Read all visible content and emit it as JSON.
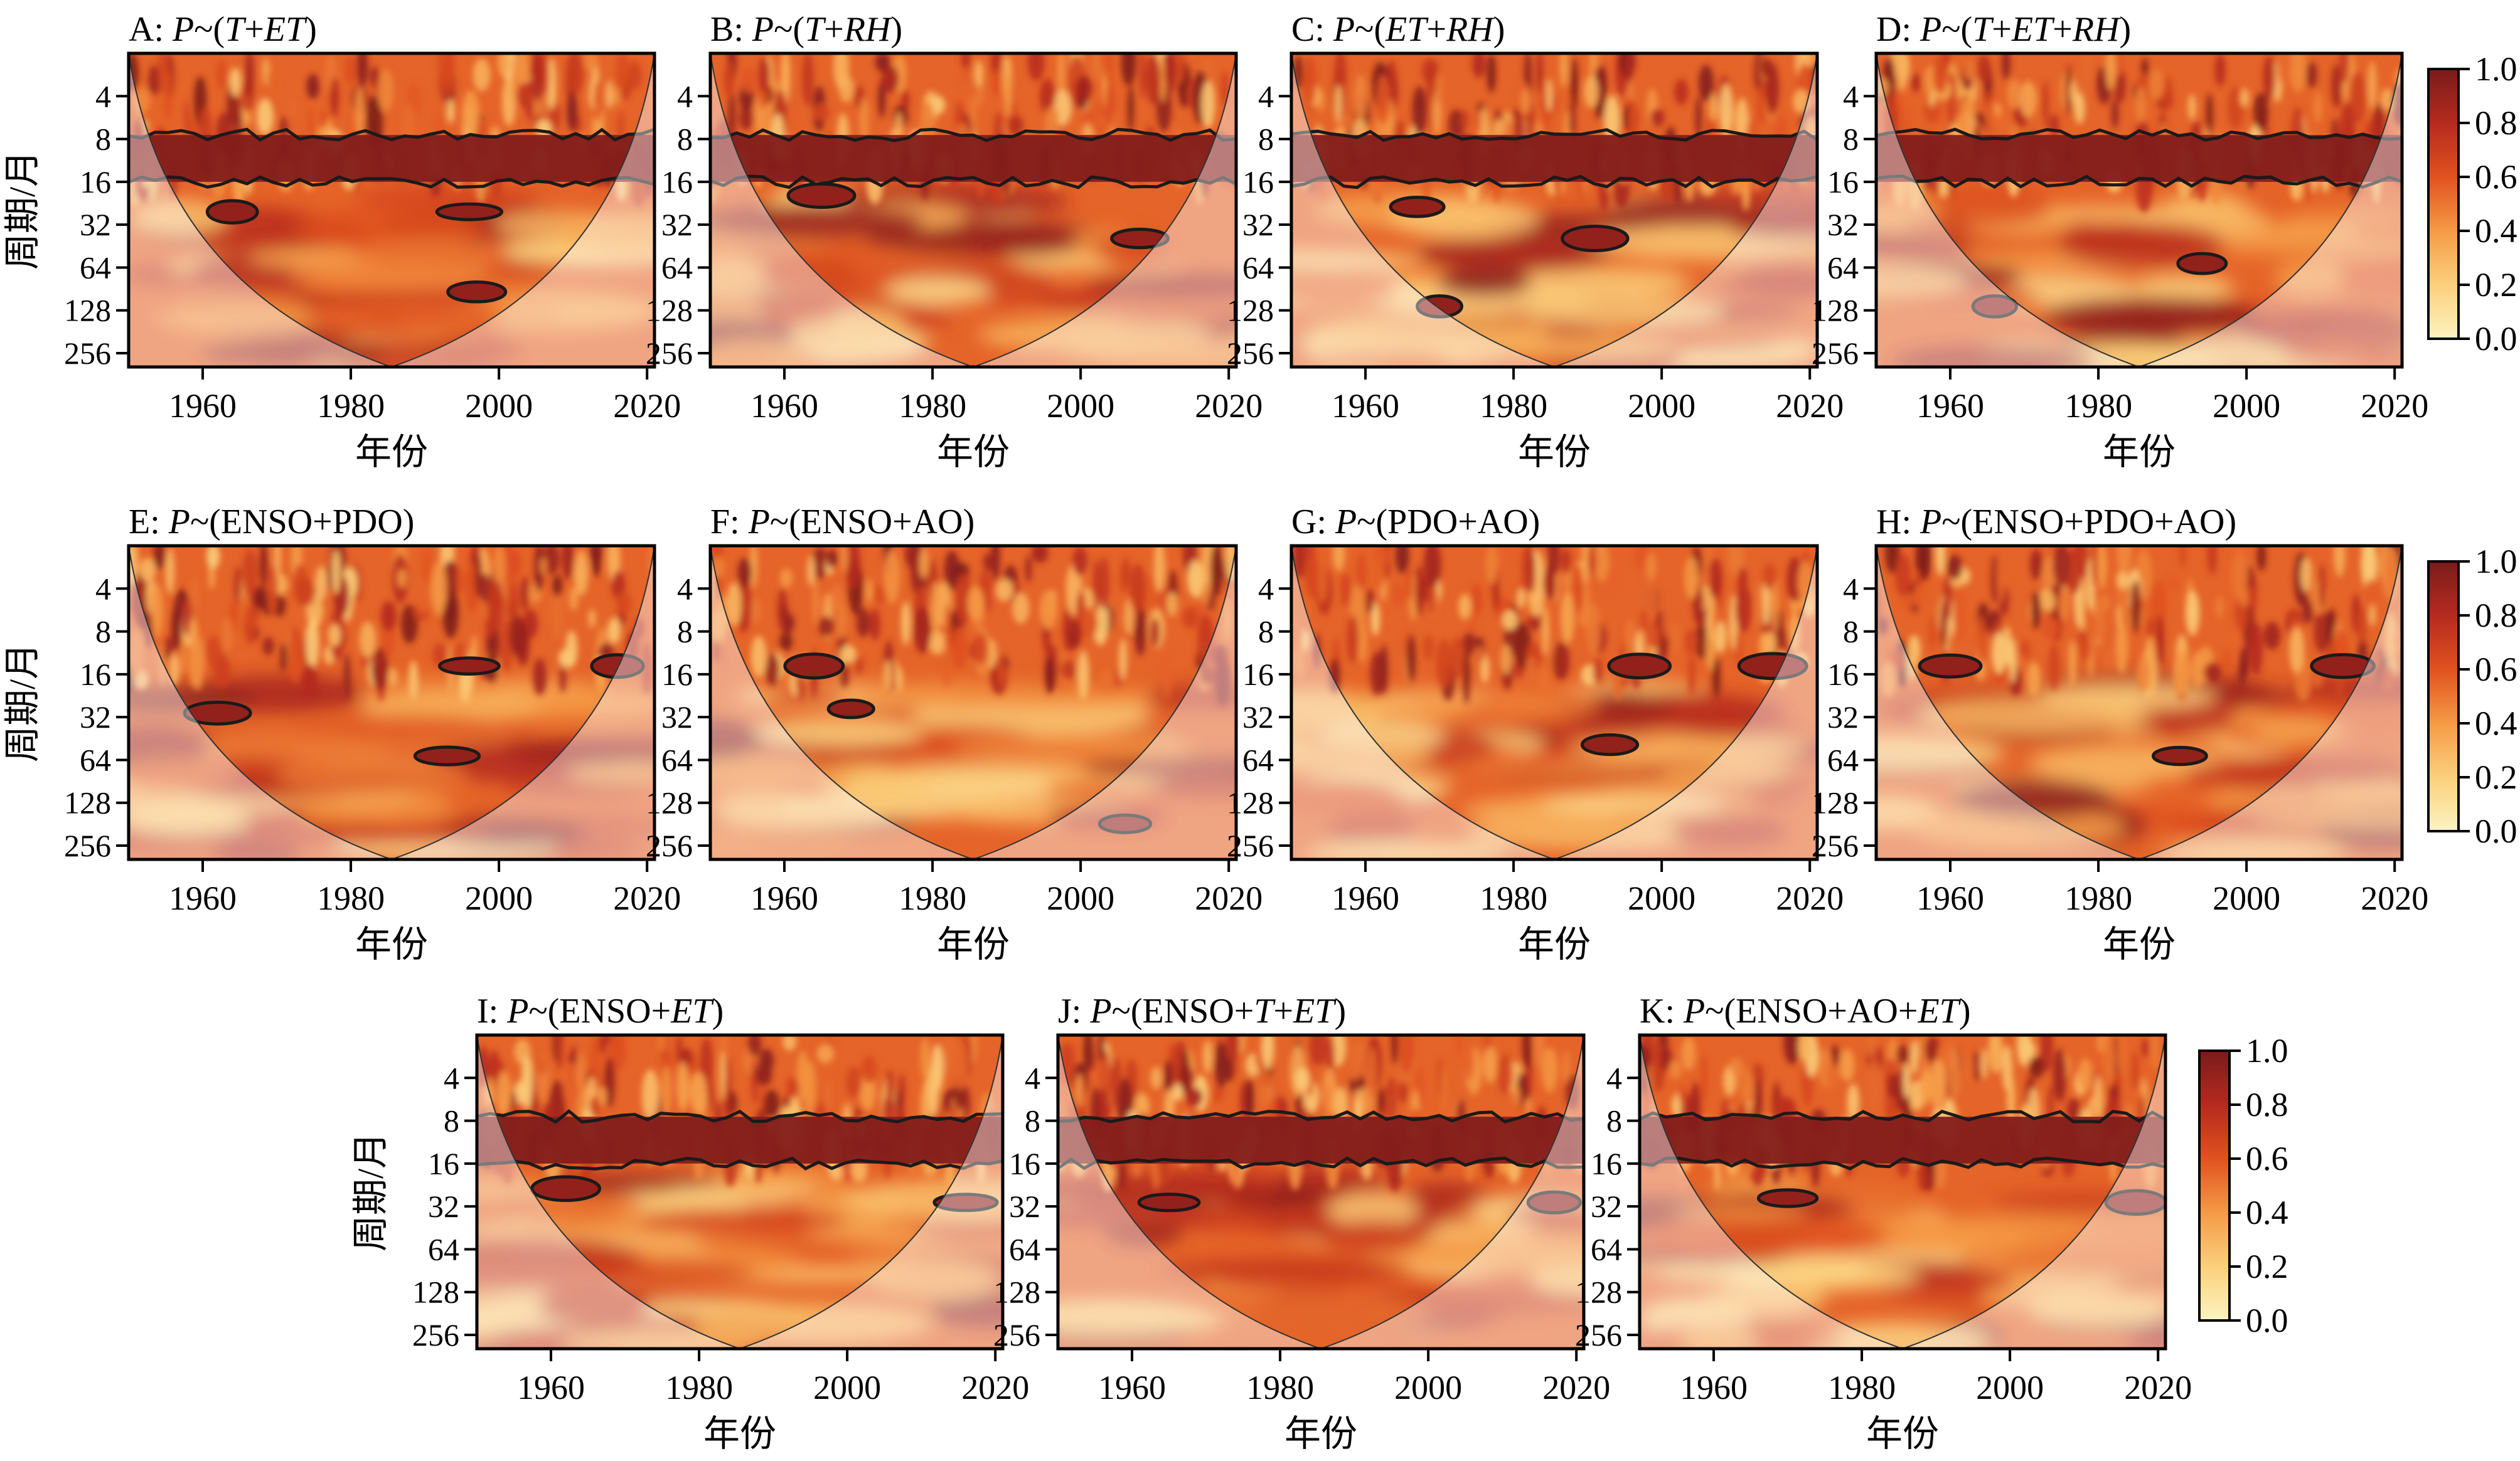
{
  "chart_data": {
    "type": "heatmap",
    "description_of_method": "",
    "x_axis": {
      "label": "年份",
      "ticks": [
        1960,
        1980,
        2000,
        2020
      ],
      "range": [
        1950,
        2021
      ]
    },
    "y_axis": {
      "label": "周期/月",
      "ticks": [
        4,
        8,
        16,
        32,
        64,
        128,
        256
      ],
      "scale": "log2",
      "range": [
        2,
        320
      ]
    },
    "colorbar": {
      "ticks": [
        "0.0",
        "0.2",
        "0.4",
        "0.6",
        "0.8",
        "1.0"
      ],
      "range": [
        0,
        1
      ],
      "colors": [
        "#fdf3c1",
        "#fbd07c",
        "#f59a45",
        "#e0521f",
        "#b52a1e",
        "#7a1b1b"
      ]
    },
    "panels": [
      {
        "id": "A",
        "prefix": "A: ",
        "title": [
          {
            "t": "P",
            "i": true
          },
          {
            "t": "~(",
            "i": false
          },
          {
            "t": "T",
            "i": true
          },
          {
            "t": "+",
            "i": false
          },
          {
            "t": "ET",
            "i": true
          },
          {
            "t": ")",
            "i": false
          }
        ],
        "high_coherence_band_min_period": 16,
        "significant_regions": [
          {
            "year": 1964,
            "period": 26
          },
          {
            "year": 1996,
            "period": 26
          },
          {
            "year": 1997,
            "period": 95
          }
        ]
      },
      {
        "id": "B",
        "prefix": "B: ",
        "title": [
          {
            "t": "P",
            "i": true
          },
          {
            "t": "~(",
            "i": false
          },
          {
            "t": "T",
            "i": true
          },
          {
            "t": "+",
            "i": false
          },
          {
            "t": "RH",
            "i": true
          },
          {
            "t": ")",
            "i": false
          }
        ],
        "high_coherence_band_min_period": 16,
        "significant_regions": [
          {
            "year": 1965,
            "period": 20
          },
          {
            "year": 2008,
            "period": 40
          }
        ]
      },
      {
        "id": "C",
        "prefix": "C: ",
        "title": [
          {
            "t": "P",
            "i": true
          },
          {
            "t": "~(",
            "i": false
          },
          {
            "t": "ET",
            "i": true
          },
          {
            "t": "+",
            "i": false
          },
          {
            "t": "RH",
            "i": true
          },
          {
            "t": ")",
            "i": false
          }
        ],
        "high_coherence_band_min_period": 16,
        "significant_regions": [
          {
            "year": 1967,
            "period": 24
          },
          {
            "year": 1970,
            "period": 120
          },
          {
            "year": 1991,
            "period": 40
          }
        ]
      },
      {
        "id": "D",
        "prefix": "D: ",
        "title": [
          {
            "t": "P",
            "i": true
          },
          {
            "t": "~(",
            "i": false
          },
          {
            "t": "T",
            "i": true
          },
          {
            "t": "+",
            "i": false
          },
          {
            "t": "ET",
            "i": true
          },
          {
            "t": "+",
            "i": false
          },
          {
            "t": "RH",
            "i": true
          },
          {
            "t": ")",
            "i": false
          }
        ],
        "high_coherence_band_min_period": 16,
        "significant_regions": [
          {
            "year": 1966,
            "period": 120
          },
          {
            "year": 1994,
            "period": 60
          }
        ]
      },
      {
        "id": "E",
        "prefix": "E: ",
        "title": [
          {
            "t": "P",
            "i": true
          },
          {
            "t": "~(ENSO+PDO)",
            "i": false
          }
        ],
        "high_coherence_band_min_period": 0,
        "significant_regions": [
          {
            "year": 1962,
            "period": 30
          },
          {
            "year": 1993,
            "period": 60
          },
          {
            "year": 1996,
            "period": 14
          },
          {
            "year": 2016,
            "period": 14
          }
        ]
      },
      {
        "id": "F",
        "prefix": "F: ",
        "title": [
          {
            "t": "P",
            "i": true
          },
          {
            "t": "~(ENSO+AO)",
            "i": false
          }
        ],
        "high_coherence_band_min_period": 0,
        "significant_regions": [
          {
            "year": 1964,
            "period": 14
          },
          {
            "year": 1969,
            "period": 28
          },
          {
            "year": 2006,
            "period": 180
          }
        ]
      },
      {
        "id": "G",
        "prefix": "G: ",
        "title": [
          {
            "t": "P",
            "i": true
          },
          {
            "t": "~(PDO+AO)",
            "i": false
          }
        ],
        "high_coherence_band_min_period": 0,
        "significant_regions": [
          {
            "year": 1993,
            "period": 50
          },
          {
            "year": 1997,
            "period": 14
          },
          {
            "year": 2015,
            "period": 14
          }
        ]
      },
      {
        "id": "H",
        "prefix": "H: ",
        "title": [
          {
            "t": "P",
            "i": true
          },
          {
            "t": "~(ENSO+PDO+AO)",
            "i": false
          }
        ],
        "high_coherence_band_min_period": 0,
        "significant_regions": [
          {
            "year": 1991,
            "period": 60
          },
          {
            "year": 1960,
            "period": 14
          },
          {
            "year": 2013,
            "period": 14
          }
        ]
      },
      {
        "id": "I",
        "prefix": "I: ",
        "title": [
          {
            "t": "P",
            "i": true
          },
          {
            "t": "~(ENSO+",
            "i": false
          },
          {
            "t": "ET",
            "i": true
          },
          {
            "t": ")",
            "i": false
          }
        ],
        "high_coherence_band_min_period": 16,
        "significant_regions": [
          {
            "year": 1962,
            "period": 24
          },
          {
            "year": 2016,
            "period": 30
          }
        ]
      },
      {
        "id": "J",
        "prefix": "J: ",
        "title": [
          {
            "t": "P",
            "i": true
          },
          {
            "t": "~(ENSO+",
            "i": false
          },
          {
            "t": "T",
            "i": true
          },
          {
            "t": "+",
            "i": false
          },
          {
            "t": "ET",
            "i": true
          },
          {
            "t": ")",
            "i": false
          }
        ],
        "high_coherence_band_min_period": 16,
        "significant_regions": [
          {
            "year": 1965,
            "period": 30
          },
          {
            "year": 2017,
            "period": 30
          }
        ]
      },
      {
        "id": "K",
        "prefix": "K: ",
        "title": [
          {
            "t": "P",
            "i": true
          },
          {
            "t": "~(ENSO+AO+",
            "i": false
          },
          {
            "t": "ET",
            "i": true
          },
          {
            "t": ")",
            "i": false
          }
        ],
        "high_coherence_band_min_period": 16,
        "significant_regions": [
          {
            "year": 1970,
            "period": 28
          },
          {
            "year": 2017,
            "period": 30
          }
        ]
      }
    ]
  }
}
